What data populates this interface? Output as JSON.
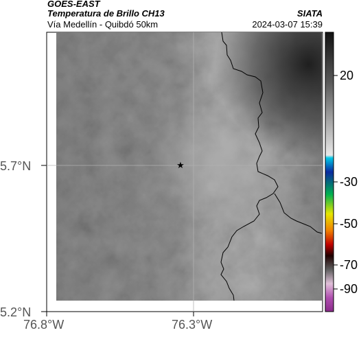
{
  "header": {
    "satellite": "GOES-EAST",
    "product": "Temperatura de Brillo CH13",
    "region": "Vía Medellín - Quibdó 50km",
    "agency": "SIATA",
    "timestamp": "2024-03-07 15:39"
  },
  "axes": {
    "lat_labels": [
      "5.7°N",
      "5.2°N"
    ],
    "lon_labels": [
      "76.8°W",
      "76.3°W"
    ]
  },
  "colorbar": {
    "ticks": [
      "20",
      "-30",
      "-50",
      "-70",
      "-90"
    ]
  },
  "colors": {
    "frame": "#000000",
    "gridline": "#b0b0b0",
    "coastline": "#000000",
    "tick_text": "#555555"
  }
}
